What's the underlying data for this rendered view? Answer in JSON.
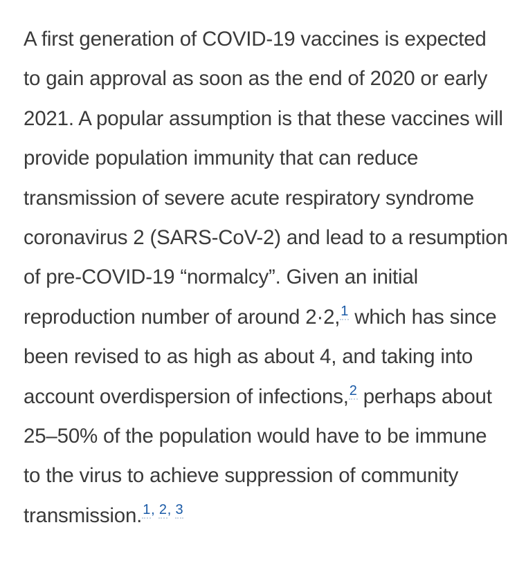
{
  "paragraph": {
    "s1": "A first generation of COVID-19 vaccines is expected to gain approval as soon as the end of 2020 or early 2021. A popular assumption is that these vaccines will provide population immunity that can reduce transmission of severe acute respiratory syndrome coronavirus 2 (SARS-CoV-2) and lead to a resumption of pre-COVID-19 “normalcy”. Given an initial reproduction number of around 2·2,",
    "ref_a": "1",
    "s2": " which has since been revised to as high as about 4, and taking into account overdispersion of infections,",
    "ref_b": "2",
    "s3": " perhaps about 25–50% of the population would have to be immune to the virus to achieve suppression of community transmission.",
    "ref_c": "1",
    "ref_sep_1": ", ",
    "ref_d": "2",
    "ref_sep_2": ", ",
    "ref_e": "3"
  },
  "colors": {
    "text": "#3a3a3a",
    "link": "#1a5aa6"
  }
}
